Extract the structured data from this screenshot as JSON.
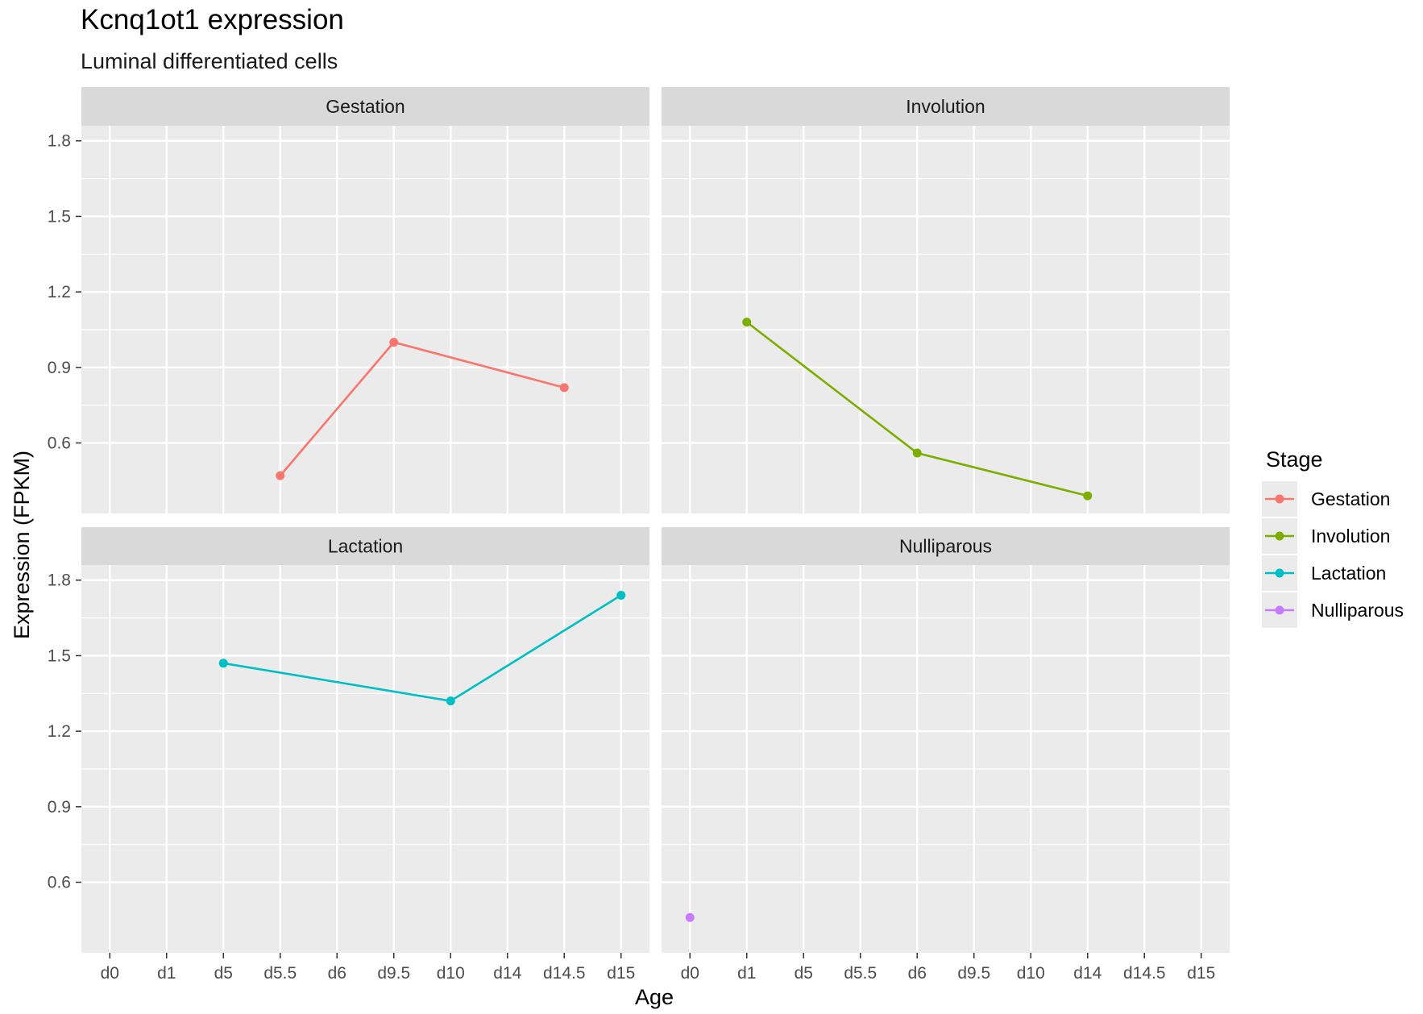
{
  "chart_data": {
    "type": "line",
    "title": "Kcnq1ot1 expression",
    "subtitle": "Luminal differentiated cells",
    "xlabel": "Age",
    "ylabel": "Expression (FPKM)",
    "categories": [
      "d0",
      "d1",
      "d5",
      "d5.5",
      "d6",
      "d9.5",
      "d10",
      "d14",
      "d14.5",
      "d15"
    ],
    "y_ticks": [
      0.6,
      0.9,
      1.2,
      1.5,
      1.8
    ],
    "ylim": [
      0.32,
      1.86
    ],
    "grid": true,
    "legend": {
      "title": "Stage",
      "position": "right",
      "entries": [
        "Gestation",
        "Involution",
        "Lactation",
        "Nulliparous"
      ]
    },
    "facets": [
      {
        "name": "Gestation",
        "color": "#F8766D",
        "points": [
          {
            "x": "d5.5",
            "y": 0.47
          },
          {
            "x": "d9.5",
            "y": 1.0
          },
          {
            "x": "d14.5",
            "y": 0.82
          }
        ]
      },
      {
        "name": "Involution",
        "color": "#7CAE00",
        "points": [
          {
            "x": "d1",
            "y": 1.08
          },
          {
            "x": "d6",
            "y": 0.56
          },
          {
            "x": "d14",
            "y": 0.39
          }
        ]
      },
      {
        "name": "Lactation",
        "color": "#00BFC4",
        "points": [
          {
            "x": "d5",
            "y": 1.47
          },
          {
            "x": "d10",
            "y": 1.32
          },
          {
            "x": "d15",
            "y": 1.74
          }
        ]
      },
      {
        "name": "Nulliparous",
        "color": "#C77CFF",
        "points": [
          {
            "x": "d0",
            "y": 0.46
          }
        ]
      }
    ]
  }
}
